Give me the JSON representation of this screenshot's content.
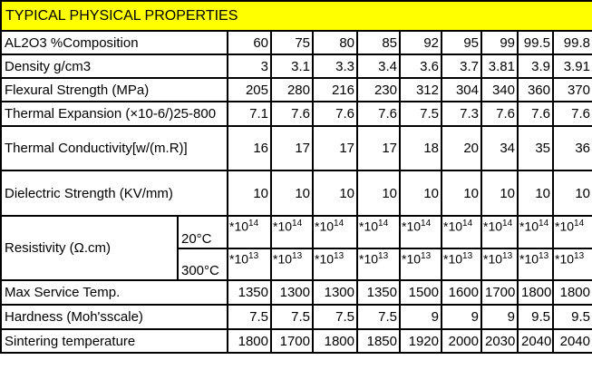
{
  "title": "TYPICAL PHYSICAL PROPERTIES",
  "rows": [
    {
      "label": "AL2O3      %Composition",
      "values": [
        "60",
        "75",
        "80",
        "85",
        "92",
        "95",
        "99",
        "99.5",
        "99.8"
      ]
    },
    {
      "label": "Density g/cm3",
      "values": [
        "3",
        "3.1",
        "3.3",
        "3.4",
        "3.6",
        "3.7",
        "3.81",
        "3.9",
        "3.91"
      ]
    },
    {
      "label": "Flexural Strength (MPa)",
      "values": [
        "205",
        "280",
        "216",
        "230",
        "312",
        "304",
        "340",
        "360",
        "370"
      ]
    },
    {
      "label": "Thermal Expansion (×10-6/)25-800",
      "values": [
        "7.1",
        "7.6",
        "7.6",
        "7.6",
        "7.5",
        "7.3",
        "7.6",
        "7.6",
        "7.6"
      ]
    },
    {
      "label": "Thermal Conductivity[w/(m.R)]",
      "values": [
        "16",
        "17",
        "17",
        "17",
        "18",
        "20",
        "34",
        "35",
        "36"
      ]
    },
    {
      "label": "Dielectric Strength (KV/mm)",
      "values": [
        "10",
        "10",
        "10",
        "10",
        "10",
        "10",
        "10",
        "10",
        "10"
      ]
    }
  ],
  "resistivity": {
    "label": "Resistivity (Ω.cm)",
    "sub": [
      {
        "temp": "20°C",
        "base": "*10",
        "exp": "14"
      },
      {
        "temp": "300°C",
        "base": "*10",
        "exp": "13"
      }
    ]
  },
  "rows2": [
    {
      "label": "Max Service Temp.",
      "values": [
        "1350",
        "1300",
        "1300",
        "1350",
        "1500",
        "1600",
        "1700",
        "1800",
        "1800"
      ]
    },
    {
      "label": "Hardness (Moh'sscale)",
      "values": [
        "7.5",
        "7.5",
        "7.5",
        "7.5",
        "9",
        "9",
        "9",
        "9.5",
        "9.5"
      ]
    },
    {
      "label": "Sintering temperature",
      "values": [
        "1800",
        "1700",
        "1800",
        "1850",
        "1920",
        "2000",
        "2030",
        "2040",
        "2040"
      ]
    }
  ]
}
